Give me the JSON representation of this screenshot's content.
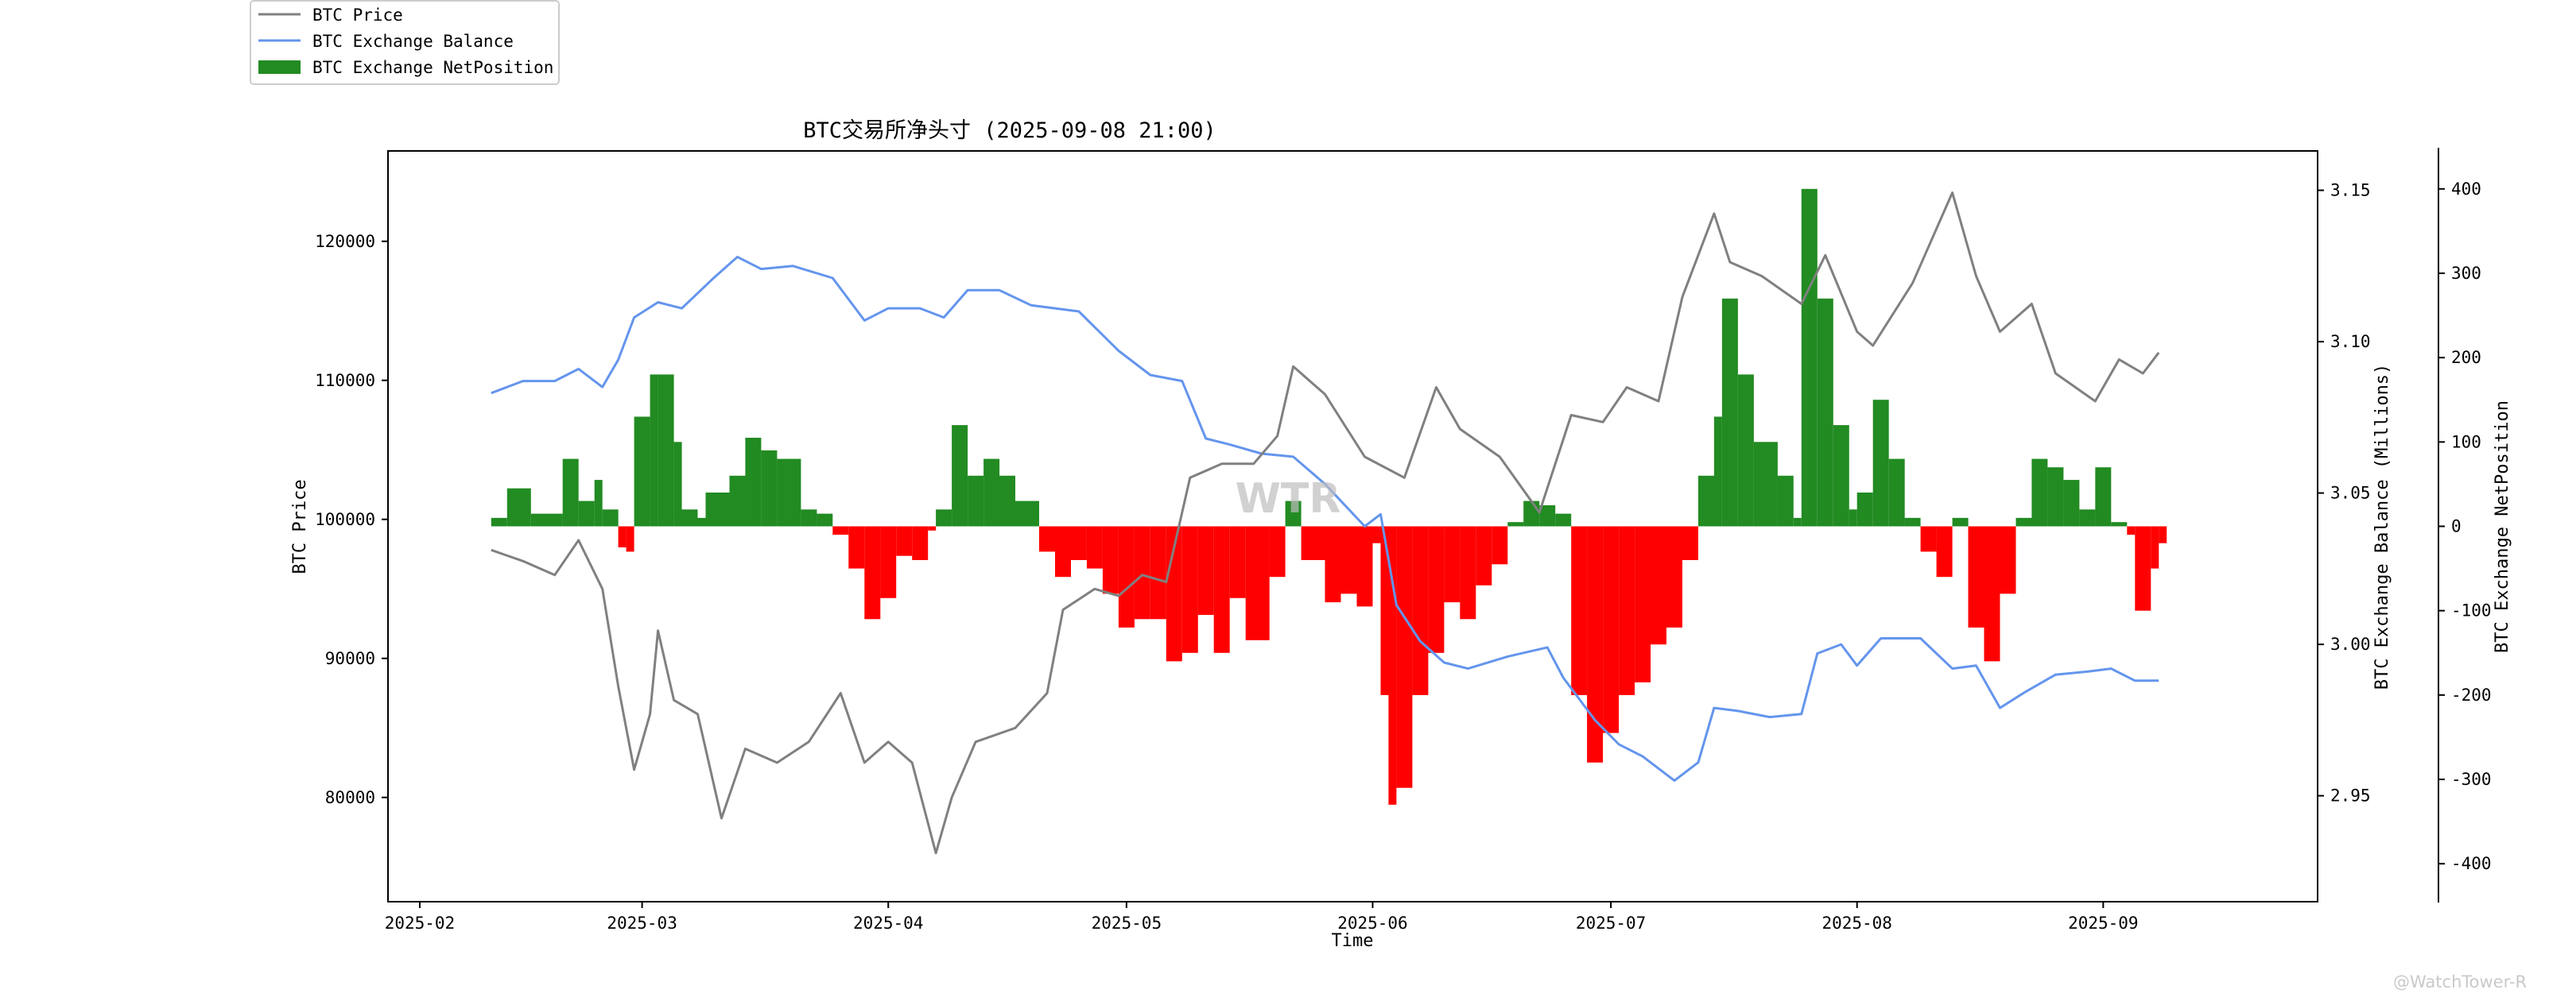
{
  "chart_data": {
    "type": "line",
    "title": "BTC交易所净头寸 (2025-09-08 21:00)",
    "xlabel": "Time",
    "x_ticks": [
      "2025-02",
      "2025-03",
      "2025-04",
      "2025-05",
      "2025-06",
      "2025-07",
      "2025-08",
      "2025-09"
    ],
    "x_range": [
      "2025-01-28",
      "2025-09-28"
    ],
    "legend_position": "top-left",
    "grid": false,
    "axes": {
      "price": {
        "label": "BTC Price",
        "side": "left",
        "ylim": [
          72500,
          126500
        ],
        "ticks": [
          "80000",
          "90000",
          "100000",
          "110000",
          "120000"
        ]
      },
      "balance": {
        "label": "BTC Exchange Balance (Millions)",
        "side": "right",
        "ylim": [
          2.915,
          3.163
        ],
        "ticks": [
          "2.95",
          "3.00",
          "3.05",
          "3.10",
          "3.15"
        ]
      },
      "netposition": {
        "label": "BTC Exchange NetPosition",
        "side": "right-outer",
        "ylim": [
          -445,
          445
        ],
        "ticks": [
          "400",
          "300",
          "200",
          "100",
          "0",
          "-100",
          "-200",
          "-300",
          "-400"
        ]
      }
    },
    "series": [
      {
        "name": "BTC Price",
        "type": "line",
        "axis": "price",
        "color": "#808080",
        "points": [
          [
            "2025-02-10",
            97800
          ],
          [
            "2025-02-14",
            97000
          ],
          [
            "2025-02-18",
            96000
          ],
          [
            "2025-02-21",
            98500
          ],
          [
            "2025-02-24",
            95000
          ],
          [
            "2025-02-26",
            88000
          ],
          [
            "2025-02-28",
            82000
          ],
          [
            "2025-03-02",
            86000
          ],
          [
            "2025-03-03",
            92000
          ],
          [
            "2025-03-05",
            87000
          ],
          [
            "2025-03-08",
            86000
          ],
          [
            "2025-03-11",
            78500
          ],
          [
            "2025-03-14",
            83500
          ],
          [
            "2025-03-18",
            82500
          ],
          [
            "2025-03-22",
            84000
          ],
          [
            "2025-03-26",
            87500
          ],
          [
            "2025-03-29",
            82500
          ],
          [
            "2025-04-01",
            84000
          ],
          [
            "2025-04-04",
            82500
          ],
          [
            "2025-04-07",
            76000
          ],
          [
            "2025-04-09",
            80000
          ],
          [
            "2025-04-12",
            84000
          ],
          [
            "2025-04-17",
            85000
          ],
          [
            "2025-04-21",
            87500
          ],
          [
            "2025-04-23",
            93500
          ],
          [
            "2025-04-27",
            95000
          ],
          [
            "2025-04-30",
            94500
          ],
          [
            "2025-05-03",
            96000
          ],
          [
            "2025-05-06",
            95500
          ],
          [
            "2025-05-09",
            103000
          ],
          [
            "2025-05-13",
            104000
          ],
          [
            "2025-05-17",
            104000
          ],
          [
            "2025-05-20",
            106000
          ],
          [
            "2025-05-22",
            111000
          ],
          [
            "2025-05-26",
            109000
          ],
          [
            "2025-05-31",
            104500
          ],
          [
            "2025-06-05",
            103000
          ],
          [
            "2025-06-09",
            109500
          ],
          [
            "2025-06-12",
            106500
          ],
          [
            "2025-06-17",
            104500
          ],
          [
            "2025-06-22",
            100500
          ],
          [
            "2025-06-26",
            107500
          ],
          [
            "2025-06-30",
            107000
          ],
          [
            "2025-07-03",
            109500
          ],
          [
            "2025-07-07",
            108500
          ],
          [
            "2025-07-10",
            116000
          ],
          [
            "2025-07-14",
            122000
          ],
          [
            "2025-07-16",
            118500
          ],
          [
            "2025-07-20",
            117500
          ],
          [
            "2025-07-25",
            115500
          ],
          [
            "2025-07-28",
            119000
          ],
          [
            "2025-08-01",
            113500
          ],
          [
            "2025-08-03",
            112500
          ],
          [
            "2025-08-08",
            117000
          ],
          [
            "2025-08-13",
            123500
          ],
          [
            "2025-08-16",
            117500
          ],
          [
            "2025-08-19",
            113500
          ],
          [
            "2025-08-23",
            115500
          ],
          [
            "2025-08-26",
            110500
          ],
          [
            "2025-08-31",
            108500
          ],
          [
            "2025-09-03",
            111500
          ],
          [
            "2025-09-06",
            110500
          ],
          [
            "2025-09-08",
            112000
          ]
        ]
      },
      {
        "name": "BTC Exchange Balance",
        "type": "line",
        "axis": "balance",
        "color": "#6495ED",
        "points": [
          [
            "2025-02-10",
            3.083
          ],
          [
            "2025-02-14",
            3.087
          ],
          [
            "2025-02-18",
            3.087
          ],
          [
            "2025-02-21",
            3.091
          ],
          [
            "2025-02-24",
            3.085
          ],
          [
            "2025-02-26",
            3.094
          ],
          [
            "2025-02-28",
            3.108
          ],
          [
            "2025-03-03",
            3.113
          ],
          [
            "2025-03-06",
            3.111
          ],
          [
            "2025-03-10",
            3.121
          ],
          [
            "2025-03-13",
            3.128
          ],
          [
            "2025-03-16",
            3.124
          ],
          [
            "2025-03-20",
            3.125
          ],
          [
            "2025-03-25",
            3.121
          ],
          [
            "2025-03-29",
            3.107
          ],
          [
            "2025-04-01",
            3.111
          ],
          [
            "2025-04-05",
            3.111
          ],
          [
            "2025-04-08",
            3.108
          ],
          [
            "2025-04-11",
            3.117
          ],
          [
            "2025-04-15",
            3.117
          ],
          [
            "2025-04-19",
            3.112
          ],
          [
            "2025-04-25",
            3.11
          ],
          [
            "2025-04-30",
            3.097
          ],
          [
            "2025-05-04",
            3.089
          ],
          [
            "2025-05-08",
            3.087
          ],
          [
            "2025-05-11",
            3.068
          ],
          [
            "2025-05-14",
            3.066
          ],
          [
            "2025-05-18",
            3.063
          ],
          [
            "2025-05-22",
            3.062
          ],
          [
            "2025-05-26",
            3.053
          ],
          [
            "2025-05-31",
            3.039
          ],
          [
            "2025-06-02",
            3.043
          ],
          [
            "2025-06-04",
            3.013
          ],
          [
            "2025-06-07",
            3.001
          ],
          [
            "2025-06-10",
            2.994
          ],
          [
            "2025-06-13",
            2.992
          ],
          [
            "2025-06-18",
            2.996
          ],
          [
            "2025-06-23",
            2.999
          ],
          [
            "2025-06-25",
            2.989
          ],
          [
            "2025-06-29",
            2.975
          ],
          [
            "2025-07-02",
            2.967
          ],
          [
            "2025-07-05",
            2.963
          ],
          [
            "2025-07-09",
            2.955
          ],
          [
            "2025-07-12",
            2.961
          ],
          [
            "2025-07-14",
            2.979
          ],
          [
            "2025-07-17",
            2.978
          ],
          [
            "2025-07-21",
            2.976
          ],
          [
            "2025-07-25",
            2.977
          ],
          [
            "2025-07-27",
            2.997
          ],
          [
            "2025-07-30",
            3.0
          ],
          [
            "2025-08-01",
            2.993
          ],
          [
            "2025-08-04",
            3.002
          ],
          [
            "2025-08-09",
            3.002
          ],
          [
            "2025-08-13",
            2.992
          ],
          [
            "2025-08-16",
            2.993
          ],
          [
            "2025-08-19",
            2.979
          ],
          [
            "2025-08-22",
            2.984
          ],
          [
            "2025-08-26",
            2.99
          ],
          [
            "2025-08-30",
            2.991
          ],
          [
            "2025-09-02",
            2.992
          ],
          [
            "2025-09-05",
            2.988
          ],
          [
            "2025-09-08",
            2.988
          ]
        ]
      },
      {
        "name": "BTC Exchange NetPosition",
        "type": "bar",
        "axis": "netposition",
        "positive_color": "#228B22",
        "negative_color": "#FF0000",
        "points": [
          [
            "2025-02-10",
            10
          ],
          [
            "2025-02-12",
            45
          ],
          [
            "2025-02-15",
            15
          ],
          [
            "2025-02-19",
            80
          ],
          [
            "2025-02-21",
            30
          ],
          [
            "2025-02-23",
            55
          ],
          [
            "2025-02-24",
            20
          ],
          [
            "2025-02-26",
            -25
          ],
          [
            "2025-02-27",
            -30
          ],
          [
            "2025-02-28",
            130
          ],
          [
            "2025-03-02",
            180
          ],
          [
            "2025-03-03",
            180
          ],
          [
            "2025-03-05",
            100
          ],
          [
            "2025-03-06",
            20
          ],
          [
            "2025-03-08",
            10
          ],
          [
            "2025-03-09",
            40
          ],
          [
            "2025-03-12",
            60
          ],
          [
            "2025-03-14",
            105
          ],
          [
            "2025-03-16",
            90
          ],
          [
            "2025-03-18",
            80
          ],
          [
            "2025-03-21",
            20
          ],
          [
            "2025-03-23",
            15
          ],
          [
            "2025-03-25",
            -10
          ],
          [
            "2025-03-27",
            -50
          ],
          [
            "2025-03-29",
            -110
          ],
          [
            "2025-03-31",
            -85
          ],
          [
            "2025-04-02",
            -35
          ],
          [
            "2025-04-04",
            -40
          ],
          [
            "2025-04-06",
            -5
          ],
          [
            "2025-04-07",
            20
          ],
          [
            "2025-04-09",
            120
          ],
          [
            "2025-04-11",
            60
          ],
          [
            "2025-04-13",
            80
          ],
          [
            "2025-04-15",
            60
          ],
          [
            "2025-04-17",
            30
          ],
          [
            "2025-04-20",
            -30
          ],
          [
            "2025-04-22",
            -60
          ],
          [
            "2025-04-24",
            -40
          ],
          [
            "2025-04-26",
            -50
          ],
          [
            "2025-04-28",
            -80
          ],
          [
            "2025-04-30",
            -120
          ],
          [
            "2025-05-02",
            -110
          ],
          [
            "2025-05-04",
            -110
          ],
          [
            "2025-05-06",
            -160
          ],
          [
            "2025-05-08",
            -150
          ],
          [
            "2025-05-10",
            -105
          ],
          [
            "2025-05-12",
            -150
          ],
          [
            "2025-05-14",
            -85
          ],
          [
            "2025-05-16",
            -135
          ],
          [
            "2025-05-19",
            -60
          ],
          [
            "2025-05-21",
            30
          ],
          [
            "2025-05-23",
            -40
          ],
          [
            "2025-05-26",
            -90
          ],
          [
            "2025-05-28",
            -80
          ],
          [
            "2025-05-30",
            -95
          ],
          [
            "2025-06-01",
            -20
          ],
          [
            "2025-06-02",
            -200
          ],
          [
            "2025-06-03",
            -330
          ],
          [
            "2025-06-04",
            -310
          ],
          [
            "2025-06-06",
            -200
          ],
          [
            "2025-06-08",
            -150
          ],
          [
            "2025-06-10",
            -90
          ],
          [
            "2025-06-12",
            -110
          ],
          [
            "2025-06-14",
            -70
          ],
          [
            "2025-06-16",
            -45
          ],
          [
            "2025-06-18",
            5
          ],
          [
            "2025-06-20",
            30
          ],
          [
            "2025-06-22",
            25
          ],
          [
            "2025-06-24",
            15
          ],
          [
            "2025-06-26",
            -200
          ],
          [
            "2025-06-28",
            -280
          ],
          [
            "2025-06-30",
            -245
          ],
          [
            "2025-07-02",
            -200
          ],
          [
            "2025-07-04",
            -185
          ],
          [
            "2025-07-06",
            -140
          ],
          [
            "2025-07-08",
            -120
          ],
          [
            "2025-07-10",
            -40
          ],
          [
            "2025-07-12",
            60
          ],
          [
            "2025-07-14",
            130
          ],
          [
            "2025-07-15",
            270
          ],
          [
            "2025-07-17",
            180
          ],
          [
            "2025-07-19",
            100
          ],
          [
            "2025-07-22",
            60
          ],
          [
            "2025-07-24",
            10
          ],
          [
            "2025-07-25",
            400
          ],
          [
            "2025-07-27",
            270
          ],
          [
            "2025-07-29",
            120
          ],
          [
            "2025-07-31",
            20
          ],
          [
            "2025-08-01",
            40
          ],
          [
            "2025-08-03",
            150
          ],
          [
            "2025-08-05",
            80
          ],
          [
            "2025-08-07",
            10
          ],
          [
            "2025-08-09",
            -30
          ],
          [
            "2025-08-11",
            -60
          ],
          [
            "2025-08-13",
            10
          ],
          [
            "2025-08-15",
            -120
          ],
          [
            "2025-08-17",
            -160
          ],
          [
            "2025-08-19",
            -80
          ],
          [
            "2025-08-21",
            10
          ],
          [
            "2025-08-23",
            80
          ],
          [
            "2025-08-25",
            70
          ],
          [
            "2025-08-27",
            55
          ],
          [
            "2025-08-29",
            20
          ],
          [
            "2025-08-31",
            70
          ],
          [
            "2025-09-02",
            5
          ],
          [
            "2025-09-04",
            -10
          ],
          [
            "2025-09-05",
            -100
          ],
          [
            "2025-09-07",
            -50
          ],
          [
            "2025-09-08",
            -20
          ]
        ]
      }
    ]
  },
  "watermark_corner": "@WatchTower-R",
  "watermark_center": "WTR"
}
